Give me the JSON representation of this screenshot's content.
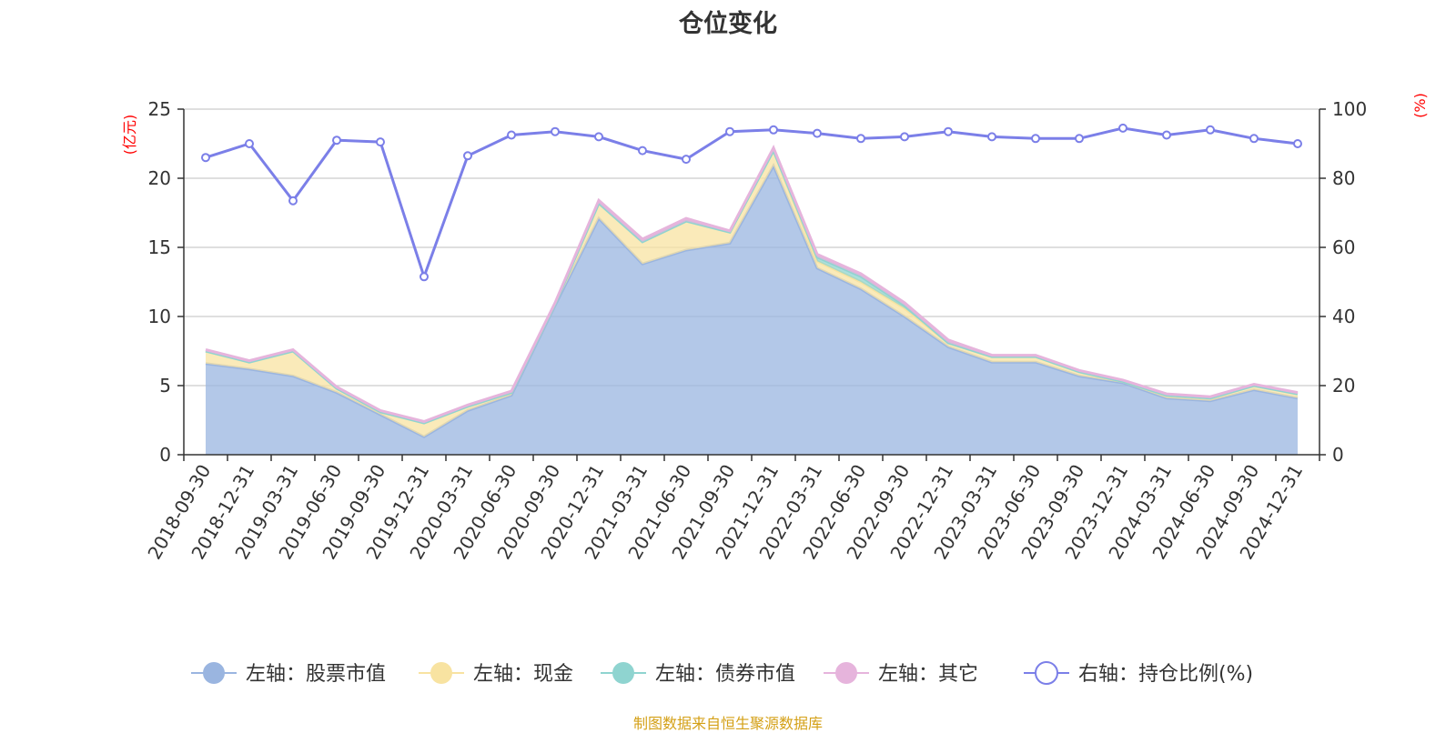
{
  "chart_data": {
    "type": "area",
    "title": "仓位变化",
    "left_axis_unit": "(亿元)",
    "right_axis_unit": "(%)",
    "left_ylim": [
      0,
      25
    ],
    "left_ticks": [
      0,
      5,
      10,
      15,
      20,
      25
    ],
    "right_ylim": [
      0,
      100
    ],
    "right_ticks": [
      0,
      20,
      40,
      60,
      80,
      100
    ],
    "grid": true,
    "legend_position": "bottom",
    "categories": [
      "2018-09-30",
      "2018-12-31",
      "2019-03-31",
      "2019-06-30",
      "2019-09-30",
      "2019-12-31",
      "2020-03-31",
      "2020-06-30",
      "2020-09-30",
      "2020-12-31",
      "2021-03-31",
      "2021-06-30",
      "2021-09-30",
      "2021-12-31",
      "2022-03-31",
      "2022-06-30",
      "2022-09-30",
      "2022-12-31",
      "2023-03-31",
      "2023-06-30",
      "2023-09-30",
      "2023-12-31",
      "2024-03-31",
      "2024-06-30",
      "2024-09-30",
      "2024-12-31"
    ],
    "series": [
      {
        "name": "左轴：股票市值",
        "axis": "left",
        "kind": "stacked-area",
        "color": "#9ab5e0",
        "values": [
          6.6,
          6.2,
          5.7,
          4.5,
          2.9,
          1.3,
          3.2,
          4.3,
          10.8,
          17.1,
          13.8,
          14.8,
          15.3,
          20.9,
          13.5,
          12.0,
          10.0,
          7.8,
          6.7,
          6.7,
          5.7,
          5.2,
          4.1,
          3.9,
          4.7,
          4.1
        ]
      },
      {
        "name": "左轴：现金",
        "axis": "left",
        "kind": "stacked-area",
        "color": "#f8e3a1",
        "values": [
          0.9,
          0.5,
          1.8,
          0.3,
          0.2,
          1.0,
          0.3,
          0.2,
          0.1,
          1.1,
          1.6,
          2.1,
          0.8,
          1.1,
          0.5,
          0.5,
          0.6,
          0.3,
          0.4,
          0.4,
          0.3,
          0.1,
          0.2,
          0.2,
          0.3,
          0.3
        ]
      },
      {
        "name": "左轴：债券市值",
        "axis": "left",
        "kind": "stacked-area",
        "color": "#8fd4d0",
        "values": [
          0,
          0,
          0,
          0,
          0,
          0,
          0,
          0,
          0,
          0,
          0,
          0,
          0,
          0,
          0.3,
          0.4,
          0.2,
          0,
          0,
          0,
          0,
          0,
          0,
          0,
          0,
          0
        ]
      },
      {
        "name": "左轴：其它",
        "axis": "left",
        "kind": "stacked-area",
        "color": "#e6b4dc",
        "values": [
          0.1,
          0.1,
          0.1,
          0.1,
          0.1,
          0.1,
          0.1,
          0.1,
          0.1,
          0.2,
          0.2,
          0.2,
          0.1,
          0.2,
          0.2,
          0.2,
          0.2,
          0.2,
          0.1,
          0.1,
          0.1,
          0.1,
          0.1,
          0.1,
          0.1,
          0.1
        ]
      },
      {
        "name": "右轴：持仓比例(%)",
        "axis": "right",
        "kind": "line",
        "color": "#7b7fe8",
        "values": [
          86.0,
          90.0,
          73.5,
          91.0,
          90.5,
          51.5,
          86.5,
          92.5,
          93.5,
          92.0,
          88.0,
          85.5,
          93.5,
          94.0,
          93.0,
          91.5,
          92.0,
          93.5,
          92.0,
          91.5,
          91.5,
          94.5,
          92.5,
          94.0,
          91.5,
          90.0
        ]
      }
    ]
  },
  "source_note": "制图数据来自恒生聚源数据库"
}
